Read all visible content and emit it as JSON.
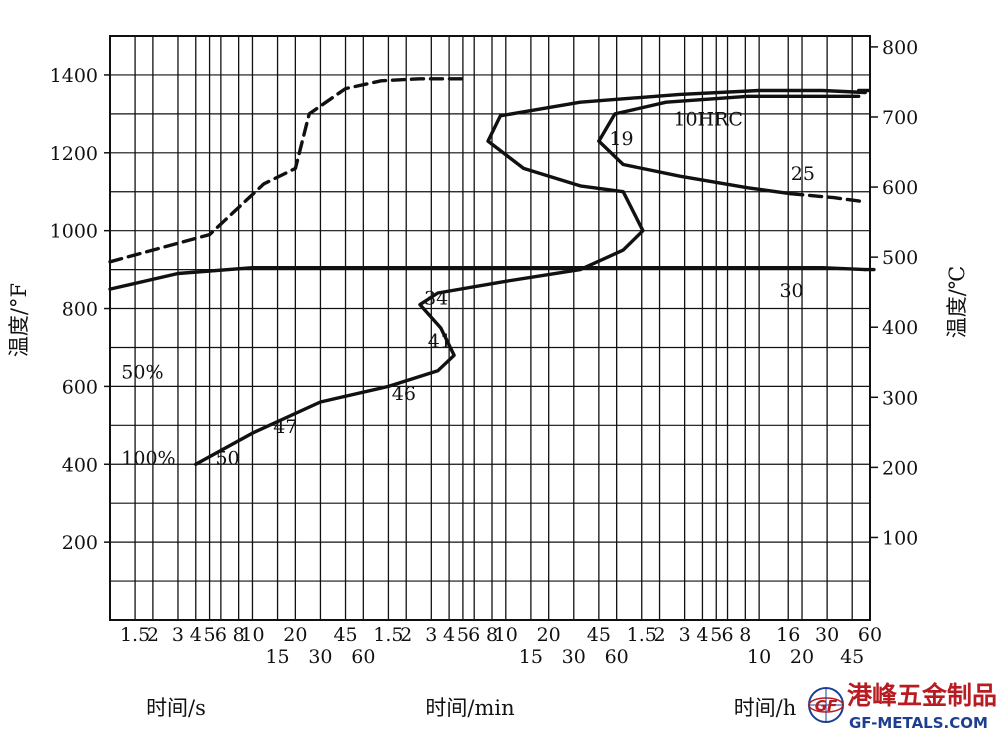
{
  "chart_data": {
    "type": "line",
    "title": "",
    "y_left": {
      "label": "温度/°F",
      "ticks": [
        200,
        400,
        600,
        800,
        1000,
        1200,
        1400
      ],
      "range": [
        0,
        1500
      ]
    },
    "y_right": {
      "label": "温度/℃",
      "ticks": [
        100,
        200,
        300,
        400,
        500,
        600,
        700,
        800
      ]
    },
    "x_segments": [
      {
        "unit_label": "时间/s",
        "row1": [
          "1.5",
          "2",
          "3",
          "4",
          "5",
          "6",
          "8",
          "10",
          "20",
          "45"
        ],
        "row2": [
          "15",
          "30",
          "60"
        ]
      },
      {
        "unit_label": "时间/min",
        "row1": [
          "1.5",
          "2",
          "3",
          "4",
          "5",
          "6",
          "8",
          "10",
          "20",
          "45"
        ],
        "row2": [
          "15",
          "30",
          "60"
        ]
      },
      {
        "unit_label": "时间/h",
        "row1": [
          "1.5",
          "2",
          "3",
          "4",
          "5",
          "6",
          "8",
          "16",
          "30",
          "60"
        ],
        "row2": [
          "10",
          "20",
          "45"
        ]
      }
    ],
    "series": [
      {
        "style": "dashed",
        "points": [
          [
            1,
            920
          ],
          [
            5,
            990
          ],
          [
            12,
            1120
          ],
          [
            20,
            1160
          ],
          [
            25,
            1300
          ],
          [
            45,
            1365
          ],
          [
            80,
            1385
          ],
          [
            150,
            1390
          ],
          [
            300,
            1390
          ]
        ]
      },
      {
        "style": "solid",
        "points": [
          [
            1,
            850
          ],
          [
            3,
            890
          ],
          [
            10,
            905
          ],
          [
            100,
            905
          ],
          [
            1000,
            905
          ],
          [
            10000,
            905
          ],
          [
            100000,
            905
          ],
          [
            200000,
            900
          ]
        ]
      },
      {
        "style": "solid",
        "points": [
          [
            4,
            400
          ],
          [
            10,
            480
          ],
          [
            30,
            560
          ],
          [
            90,
            600
          ],
          [
            200,
            640
          ],
          [
            260,
            680
          ],
          [
            210,
            750
          ],
          [
            150,
            810
          ],
          [
            200,
            840
          ],
          [
            600,
            870
          ],
          [
            2000,
            900
          ],
          [
            4000,
            950
          ],
          [
            5500,
            1000
          ],
          [
            4000,
            1100
          ],
          [
            2000,
            1115
          ],
          [
            800,
            1160
          ],
          [
            450,
            1230
          ],
          [
            550,
            1295
          ],
          [
            2000,
            1330
          ],
          [
            10000,
            1350
          ],
          [
            36000,
            1360
          ],
          [
            100000,
            1360
          ],
          [
            200000,
            1355
          ]
        ]
      },
      {
        "style": "solid",
        "points": [
          [
            2700,
            1230
          ],
          [
            3500,
            1300
          ],
          [
            8000,
            1330
          ],
          [
            30000,
            1345
          ],
          [
            100000,
            1345
          ],
          [
            180000,
            1345
          ]
        ]
      },
      {
        "style": "solid",
        "points": [
          [
            2700,
            1230
          ],
          [
            4000,
            1170
          ],
          [
            10000,
            1140
          ],
          [
            30000,
            1110
          ],
          [
            60000,
            1095
          ]
        ]
      },
      {
        "style": "dashed",
        "points": [
          [
            60000,
            1095
          ],
          [
            120000,
            1085
          ],
          [
            190000,
            1075
          ]
        ]
      },
      {
        "style": "dashed",
        "points": [
          [
            180000,
            1360
          ],
          [
            210000,
            1360
          ]
        ]
      },
      {
        "style": "dashed",
        "points": [
          [
            200000,
            900
          ],
          [
            230000,
            900
          ]
        ]
      }
    ],
    "labels": [
      {
        "text": "50%",
        "x": 1.2,
        "y": 620
      },
      {
        "text": "100%",
        "x": 1.2,
        "y": 400
      },
      {
        "text": "50",
        "x": 5.5,
        "y": 400
      },
      {
        "text": "47",
        "x": 14,
        "y": 480
      },
      {
        "text": "46",
        "x": 95,
        "y": 565
      },
      {
        "text": "34",
        "x": 160,
        "y": 810
      },
      {
        "text": "41",
        "x": 170,
        "y": 700
      },
      {
        "text": "19",
        "x": 3200,
        "y": 1220
      },
      {
        "text": "10HRC",
        "x": 9000,
        "y": 1270
      },
      {
        "text": "25",
        "x": 60000,
        "y": 1130
      },
      {
        "text": "30",
        "x": 50000,
        "y": 830
      }
    ],
    "grid": true
  },
  "watermark": {
    "logo_letters": "GF",
    "text": "港峰五金制品",
    "url": "GF-METALS.COM"
  },
  "colors": {
    "ink": "#111111",
    "watermark_red": "#b81c22",
    "watermark_blue": "#1e3f91"
  }
}
